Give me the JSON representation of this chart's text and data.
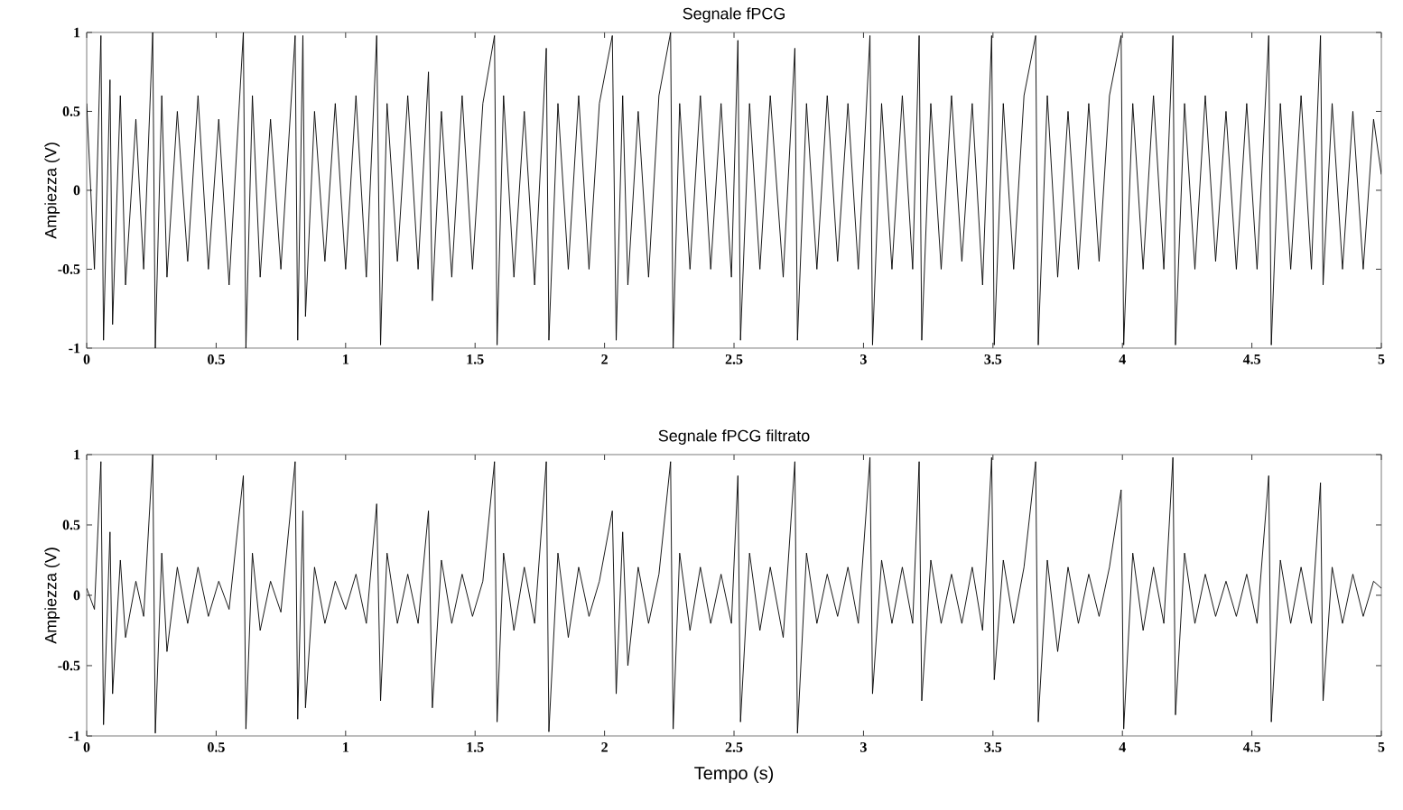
{
  "chart_data": [
    {
      "type": "line",
      "title": "Segnale fPCG",
      "ylabel": "Ampiezza (V)",
      "xlim": [
        0,
        5
      ],
      "ylim": [
        -1,
        1
      ],
      "xticks": [
        0,
        0.5,
        1,
        1.5,
        2,
        2.5,
        3,
        3.5,
        4,
        4.5,
        5
      ],
      "yticks": [
        -1,
        -0.5,
        0,
        0.5,
        1
      ],
      "series": [
        {
          "color": "#000000",
          "x": [
            0,
            0.03,
            0.055,
            0.065,
            0.09,
            0.1,
            0.13,
            0.15,
            0.19,
            0.22,
            0.255,
            0.265,
            0.29,
            0.31,
            0.35,
            0.39,
            0.43,
            0.47,
            0.51,
            0.55,
            0.605,
            0.615,
            0.64,
            0.67,
            0.71,
            0.75,
            0.805,
            0.815,
            0.835,
            0.845,
            0.88,
            0.92,
            0.96,
            1.0,
            1.04,
            1.08,
            1.12,
            1.135,
            1.16,
            1.2,
            1.24,
            1.28,
            1.32,
            1.335,
            1.37,
            1.41,
            1.45,
            1.49,
            1.53,
            1.575,
            1.585,
            1.61,
            1.65,
            1.69,
            1.73,
            1.775,
            1.785,
            1.82,
            1.86,
            1.9,
            1.94,
            1.98,
            2.03,
            2.045,
            2.07,
            2.09,
            2.13,
            2.17,
            2.21,
            2.255,
            2.265,
            2.29,
            2.33,
            2.37,
            2.41,
            2.45,
            2.49,
            2.515,
            2.525,
            2.56,
            2.6,
            2.64,
            2.69,
            2.735,
            2.745,
            2.78,
            2.82,
            2.86,
            2.9,
            2.94,
            2.98,
            3.025,
            3.035,
            3.07,
            3.11,
            3.15,
            3.19,
            3.215,
            3.225,
            3.26,
            3.3,
            3.34,
            3.38,
            3.42,
            3.46,
            3.495,
            3.505,
            3.54,
            3.58,
            3.62,
            3.665,
            3.675,
            3.71,
            3.75,
            3.79,
            3.83,
            3.87,
            3.91,
            3.95,
            3.995,
            4.005,
            4.04,
            4.08,
            4.12,
            4.16,
            4.195,
            4.205,
            4.24,
            4.28,
            4.32,
            4.36,
            4.4,
            4.44,
            4.48,
            4.52,
            4.565,
            4.575,
            4.61,
            4.65,
            4.69,
            4.73,
            4.765,
            4.775,
            4.81,
            4.85,
            4.89,
            4.93,
            4.97,
            5.0
          ],
          "values": [
            0.55,
            -0.5,
            0.98,
            -0.95,
            0.7,
            -0.85,
            0.6,
            -0.6,
            0.45,
            -0.5,
            1.0,
            -1.0,
            0.6,
            -0.55,
            0.5,
            -0.45,
            0.6,
            -0.5,
            0.45,
            -0.6,
            1.0,
            -1.0,
            0.6,
            -0.55,
            0.45,
            -0.5,
            0.98,
            -0.95,
            0.98,
            -0.8,
            0.5,
            -0.45,
            0.55,
            -0.5,
            0.6,
            -0.55,
            0.98,
            -0.98,
            0.55,
            -0.45,
            0.6,
            -0.5,
            0.75,
            -0.7,
            0.5,
            -0.55,
            0.6,
            -0.5,
            0.55,
            0.98,
            -0.98,
            0.6,
            -0.55,
            0.5,
            -0.6,
            0.9,
            -0.95,
            0.55,
            -0.5,
            0.6,
            -0.5,
            0.55,
            0.98,
            -0.95,
            0.6,
            -0.6,
            0.5,
            -0.55,
            0.6,
            1.0,
            -1.0,
            0.55,
            -0.5,
            0.6,
            -0.5,
            0.55,
            -0.55,
            0.95,
            -0.95,
            0.55,
            -0.5,
            0.6,
            -0.55,
            0.9,
            -0.95,
            0.55,
            -0.5,
            0.6,
            -0.45,
            0.55,
            -0.5,
            0.98,
            -0.98,
            0.55,
            -0.5,
            0.6,
            -0.5,
            0.98,
            -0.95,
            0.55,
            -0.5,
            0.6,
            -0.45,
            0.55,
            -0.6,
            0.98,
            -0.98,
            0.55,
            -0.5,
            0.6,
            0.98,
            -0.98,
            0.6,
            -0.55,
            0.5,
            -0.5,
            0.55,
            -0.45,
            0.6,
            0.98,
            -0.98,
            0.55,
            -0.5,
            0.6,
            -0.5,
            0.98,
            -0.98,
            0.55,
            -0.5,
            0.6,
            -0.45,
            0.5,
            -0.5,
            0.55,
            -0.5,
            0.98,
            -0.98,
            0.55,
            -0.5,
            0.6,
            -0.5,
            0.98,
            -0.6,
            0.55,
            -0.5,
            0.5,
            -0.5,
            0.45,
            0.1
          ]
        }
      ]
    },
    {
      "type": "line",
      "title": "Segnale fPCG filtrato",
      "xlabel": "Tempo (s)",
      "ylabel": "Ampiezza (V)",
      "xlim": [
        0,
        5
      ],
      "ylim": [
        -1,
        1
      ],
      "xticks": [
        0,
        0.5,
        1,
        1.5,
        2,
        2.5,
        3,
        3.5,
        4,
        4.5,
        5
      ],
      "yticks": [
        -1,
        -0.5,
        0,
        0.5,
        1
      ],
      "series": [
        {
          "color": "#000000",
          "x": [
            0,
            0.03,
            0.055,
            0.065,
            0.09,
            0.1,
            0.13,
            0.15,
            0.19,
            0.22,
            0.255,
            0.265,
            0.29,
            0.31,
            0.35,
            0.39,
            0.43,
            0.47,
            0.51,
            0.55,
            0.605,
            0.615,
            0.64,
            0.67,
            0.71,
            0.75,
            0.805,
            0.815,
            0.835,
            0.845,
            0.88,
            0.92,
            0.96,
            1.0,
            1.04,
            1.08,
            1.12,
            1.135,
            1.16,
            1.2,
            1.24,
            1.28,
            1.32,
            1.335,
            1.37,
            1.41,
            1.45,
            1.49,
            1.53,
            1.575,
            1.585,
            1.61,
            1.65,
            1.69,
            1.73,
            1.775,
            1.785,
            1.82,
            1.86,
            1.9,
            1.94,
            1.98,
            2.03,
            2.045,
            2.07,
            2.09,
            2.13,
            2.17,
            2.21,
            2.255,
            2.265,
            2.29,
            2.33,
            2.37,
            2.41,
            2.45,
            2.49,
            2.515,
            2.525,
            2.56,
            2.6,
            2.64,
            2.69,
            2.735,
            2.745,
            2.78,
            2.82,
            2.86,
            2.9,
            2.94,
            2.98,
            3.025,
            3.035,
            3.07,
            3.11,
            3.15,
            3.19,
            3.215,
            3.225,
            3.26,
            3.3,
            3.34,
            3.38,
            3.42,
            3.46,
            3.495,
            3.505,
            3.54,
            3.58,
            3.62,
            3.665,
            3.675,
            3.71,
            3.75,
            3.79,
            3.83,
            3.87,
            3.91,
            3.95,
            3.995,
            4.005,
            4.04,
            4.08,
            4.12,
            4.16,
            4.195,
            4.205,
            4.24,
            4.28,
            4.32,
            4.36,
            4.4,
            4.44,
            4.48,
            4.52,
            4.565,
            4.575,
            4.61,
            4.65,
            4.69,
            4.73,
            4.765,
            4.775,
            4.81,
            4.85,
            4.89,
            4.93,
            4.97,
            5.0
          ],
          "values": [
            0.05,
            -0.1,
            0.95,
            -0.92,
            0.45,
            -0.7,
            0.25,
            -0.3,
            0.1,
            -0.15,
            1.0,
            -0.98,
            0.3,
            -0.4,
            0.2,
            -0.2,
            0.2,
            -0.15,
            0.1,
            -0.1,
            0.85,
            -0.95,
            0.3,
            -0.25,
            0.1,
            -0.12,
            0.95,
            -0.88,
            0.6,
            -0.8,
            0.2,
            -0.2,
            0.1,
            -0.1,
            0.15,
            -0.2,
            0.65,
            -0.75,
            0.3,
            -0.2,
            0.15,
            -0.2,
            0.6,
            -0.8,
            0.25,
            -0.2,
            0.15,
            -0.15,
            0.1,
            0.95,
            -0.9,
            0.3,
            -0.25,
            0.2,
            -0.2,
            0.95,
            -0.97,
            0.3,
            -0.3,
            0.2,
            -0.15,
            0.1,
            0.6,
            -0.7,
            0.45,
            -0.5,
            0.2,
            -0.2,
            0.15,
            0.95,
            -0.95,
            0.3,
            -0.25,
            0.2,
            -0.2,
            0.15,
            -0.2,
            0.85,
            -0.9,
            0.3,
            -0.25,
            0.2,
            -0.3,
            0.95,
            -0.98,
            0.3,
            -0.2,
            0.15,
            -0.15,
            0.2,
            -0.2,
            0.98,
            -0.7,
            0.25,
            -0.2,
            0.2,
            -0.2,
            0.95,
            -0.75,
            0.25,
            -0.2,
            0.15,
            -0.2,
            0.2,
            -0.25,
            0.98,
            -0.6,
            0.25,
            -0.2,
            0.2,
            0.95,
            -0.9,
            0.25,
            -0.4,
            0.2,
            -0.2,
            0.15,
            -0.15,
            0.2,
            0.75,
            -0.95,
            0.3,
            -0.25,
            0.2,
            -0.2,
            0.98,
            -0.85,
            0.3,
            -0.2,
            0.15,
            -0.15,
            0.1,
            -0.15,
            0.15,
            -0.2,
            0.85,
            -0.9,
            0.25,
            -0.2,
            0.2,
            -0.2,
            0.8,
            -0.75,
            0.2,
            -0.2,
            0.15,
            -0.15,
            0.1,
            0.05
          ]
        }
      ]
    }
  ]
}
